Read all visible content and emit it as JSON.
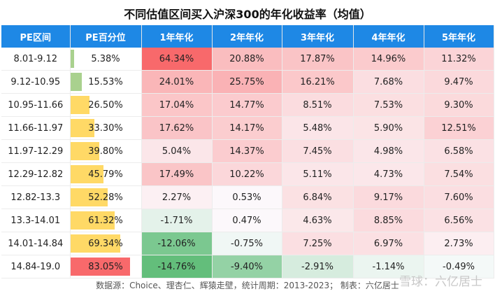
{
  "chart_data": {
    "type": "table",
    "title": "不同估值区间买入沪深300的年化收益率（均值）",
    "columns": [
      "PE区间",
      "PE百分位",
      "1年年化",
      "2年年化",
      "3年年化",
      "4年年化",
      "5年年化"
    ],
    "rows": [
      {
        "pe": "8.01-9.12",
        "pct": "5.38%",
        "pct_value": 5.38,
        "returns": [
          "64.34%",
          "20.88%",
          "17.87%",
          "14.96%",
          "11.32%"
        ]
      },
      {
        "pe": "9.12-10.95",
        "pct": "15.53%",
        "pct_value": 15.53,
        "returns": [
          "24.01%",
          "25.75%",
          "16.21%",
          "7.68%",
          "9.47%"
        ]
      },
      {
        "pe": "10.95-11.66",
        "pct": "26.50%",
        "pct_value": 26.5,
        "returns": [
          "17.04%",
          "14.77%",
          "8.51%",
          "7.53%",
          "9.30%"
        ]
      },
      {
        "pe": "11.66-11.97",
        "pct": "33.30%",
        "pct_value": 33.3,
        "returns": [
          "17.62%",
          "14.17%",
          "5.48%",
          "5.90%",
          "12.51%"
        ]
      },
      {
        "pe": "11.97-12.29",
        "pct": "39.80%",
        "pct_value": 39.8,
        "returns": [
          "5.04%",
          "14.37%",
          "7.45%",
          "4.98%",
          "6.58%"
        ]
      },
      {
        "pe": "12.29-12.82",
        "pct": "45.79%",
        "pct_value": 45.79,
        "returns": [
          "17.49%",
          "10.22%",
          "5.11%",
          "4.73%",
          "7.54%"
        ]
      },
      {
        "pe": "12.82-13.3",
        "pct": "52.28%",
        "pct_value": 52.28,
        "returns": [
          "2.27%",
          "0.53%",
          "6.84%",
          "9.17%",
          "7.60%"
        ]
      },
      {
        "pe": "13.3-14.01",
        "pct": "61.32%",
        "pct_value": 61.32,
        "returns": [
          "-1.71%",
          "0.47%",
          "4.63%",
          "8.85%",
          "6.56%"
        ]
      },
      {
        "pe": "14.01-14.84",
        "pct": "69.34%",
        "pct_value": 69.34,
        "returns": [
          "-12.06%",
          "-0.75%",
          "7.25%",
          "6.97%",
          "2.73%"
        ]
      },
      {
        "pe": "14.84-19.0",
        "pct": "83.05%",
        "pct_value": 83.05,
        "returns": [
          "-14.76%",
          "-9.40%",
          "-2.91%",
          "-1.14%",
          "-0.49%"
        ]
      }
    ],
    "colors": {
      "header_bg": "#1e88e5",
      "positive_max": "#f8696b",
      "neutral": "#fcfcff",
      "negative_max": "#63be7b",
      "bar_low": "#a9d18e",
      "bar_mid": "#ffd966",
      "bar_high": "#f8696b"
    }
  },
  "source_text": "数据源：Choice、理杏仁、辉猿走壁，统计周期：2013-2023；  制表：六亿居士",
  "watermark_text": "雪球：六亿居士"
}
